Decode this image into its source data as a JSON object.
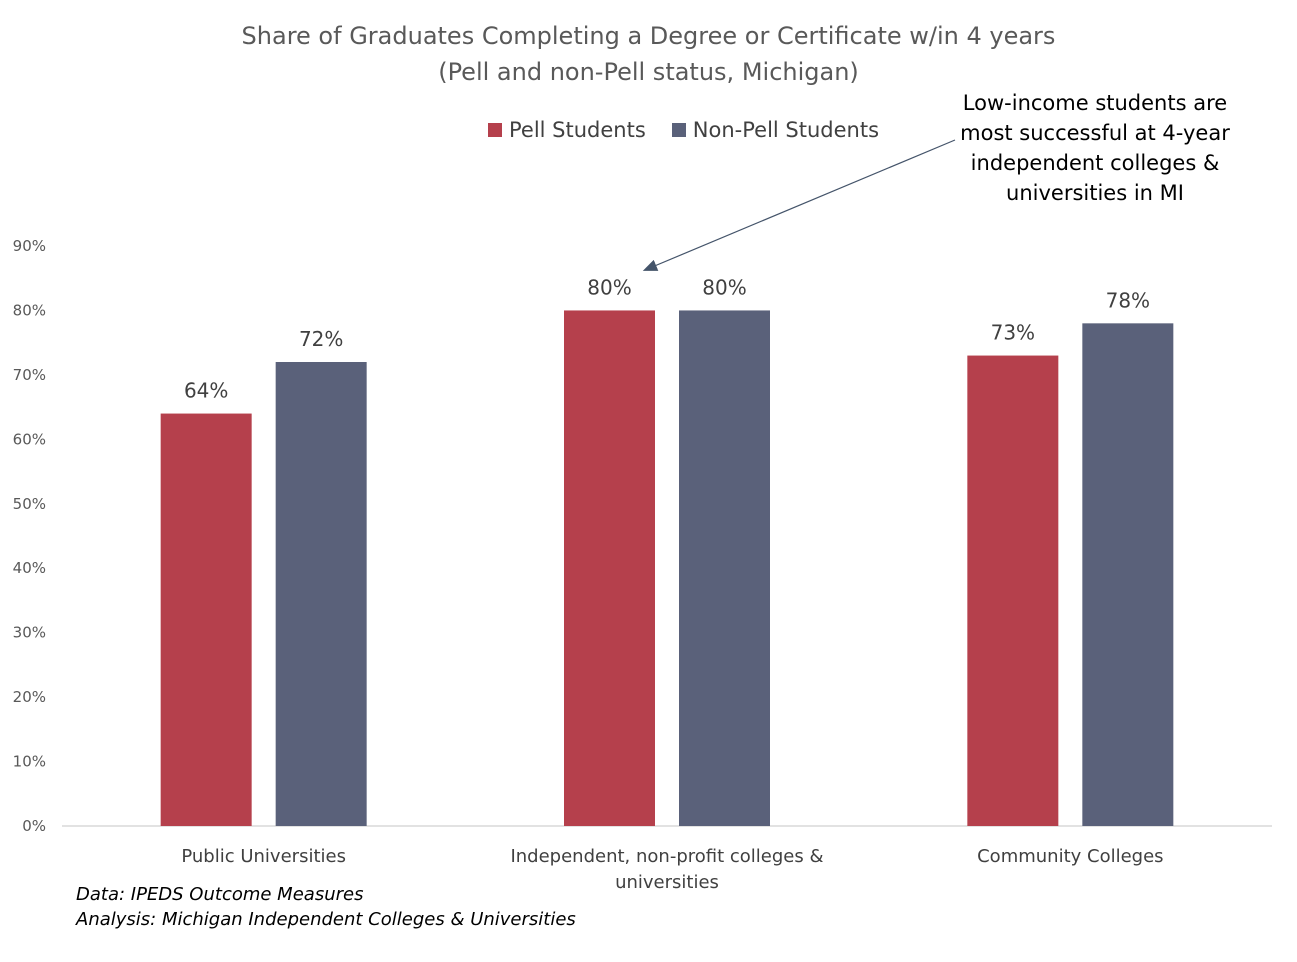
{
  "chart_data": {
    "type": "bar",
    "title": "Share of Graduates Completing a Degree or Certificate w/in 4 years",
    "subtitle": "(Pell and non-Pell status, Michigan)",
    "categories": [
      "Public Universities",
      "Independent, non-profit colleges & universities",
      "Community Colleges"
    ],
    "series": [
      {
        "name": "Pell Students",
        "color": "#b5404c",
        "values": [
          64,
          80,
          73
        ],
        "labels": [
          "64%",
          "80%",
          "73%"
        ]
      },
      {
        "name": "Non-Pell Students",
        "color": "#5a617a",
        "values": [
          72,
          80,
          78
        ],
        "labels": [
          "72%",
          "80%",
          "78%"
        ]
      }
    ],
    "ylim": [
      0,
      90
    ],
    "yticks": [
      "0%",
      "10%",
      "20%",
      "30%",
      "40%",
      "50%",
      "60%",
      "70%",
      "80%",
      "90%"
    ],
    "grid": false,
    "legend_position": "top",
    "annotation": "Low-income students are most successful at 4-year independent colleges & universities in MI"
  },
  "source": {
    "line1": "Data: IPEDS Outcome Measures",
    "line2": "Analysis: Michigan Independent Colleges & Universities"
  }
}
